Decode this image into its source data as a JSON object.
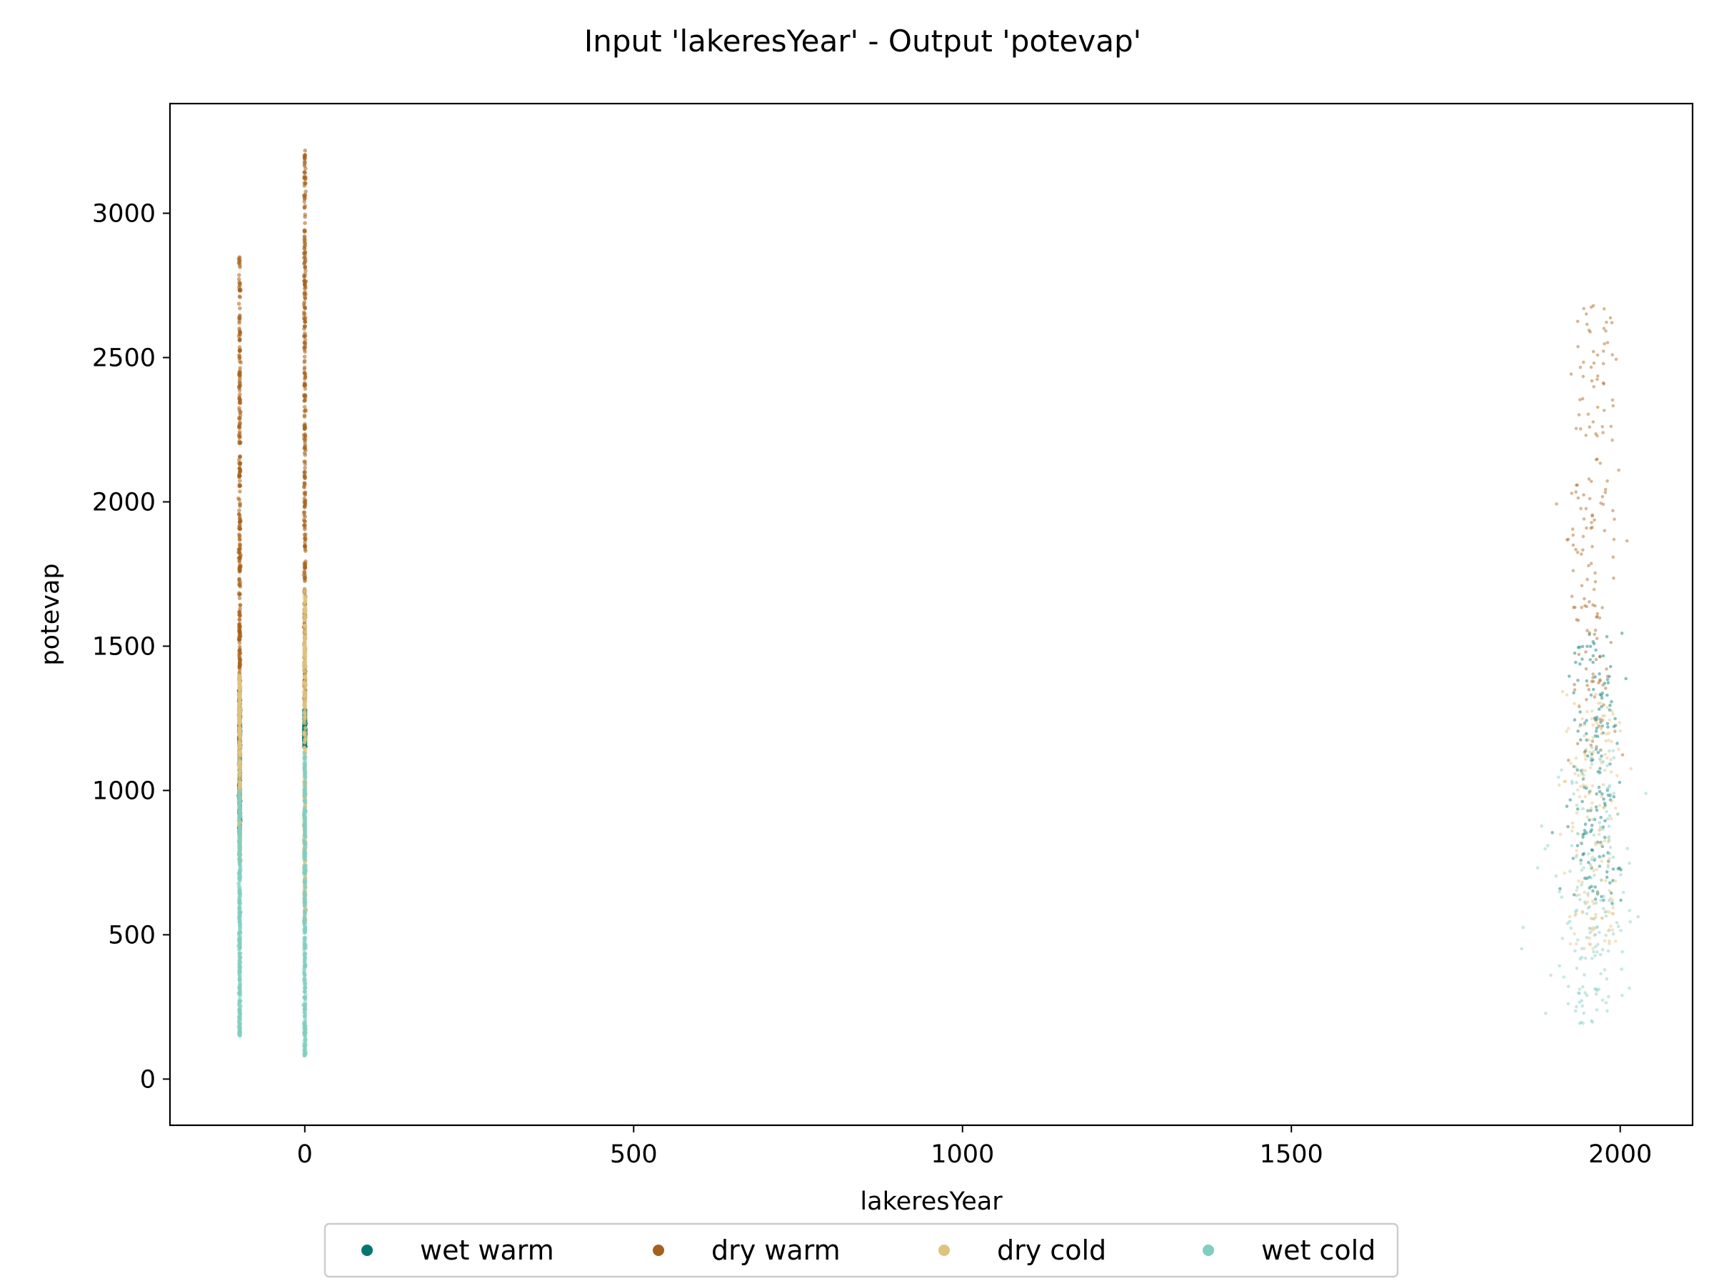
{
  "chart_data": {
    "type": "scatter",
    "title": "Input 'lakeresYear' - Output 'potevap'",
    "xlabel": "lakeresYear",
    "ylabel": "potevap",
    "xlim": [
      -205,
      2110
    ],
    "ylim": [
      -160,
      3380
    ],
    "xticks": [
      0,
      500,
      1000,
      1500,
      2000
    ],
    "yticks": [
      0,
      500,
      1000,
      1500,
      2000,
      2500,
      3000
    ],
    "grid": false,
    "legend_position": "bottom-center, outside plot",
    "series": [
      {
        "name": "wet warm",
        "color": "#01786f",
        "clusters": [
          {
            "x": -99,
            "y_min": 850,
            "y_max": 1350
          },
          {
            "x": 0,
            "y_min": 1150,
            "y_max": 1280
          },
          {
            "x": 1960,
            "x_spread": 35,
            "y_min": 600,
            "y_max": 1550
          }
        ]
      },
      {
        "name": "dry warm",
        "color": "#a6611a",
        "clusters": [
          {
            "x": -99,
            "y_min": 1150,
            "y_max": 2850
          },
          {
            "x": 0,
            "y_min": 1300,
            "y_max": 3220
          },
          {
            "x": 1960,
            "x_spread": 35,
            "y_min": 1100,
            "y_max": 2680
          }
        ]
      },
      {
        "name": "dry cold",
        "color": "#dfc27d",
        "clusters": [
          {
            "x": -99,
            "y_min": 750,
            "y_max": 1400
          },
          {
            "x": 0,
            "y_min": 550,
            "y_max": 1700
          },
          {
            "x": 1960,
            "x_spread": 40,
            "y_min": 450,
            "y_max": 1350
          }
        ]
      },
      {
        "name": "wet cold",
        "color": "#80cdc1",
        "clusters": [
          {
            "x": -99,
            "y_min": 150,
            "y_max": 1000
          },
          {
            "x": 0,
            "y_min": 80,
            "y_max": 1150
          },
          {
            "x": 1955,
            "x_spread": 60,
            "y_min": 190,
            "y_max": 1150
          }
        ]
      }
    ]
  }
}
